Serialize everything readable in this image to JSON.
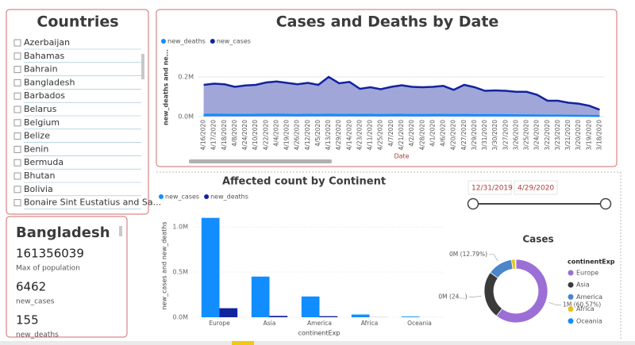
{
  "slicer": {
    "title": "Countries",
    "items": [
      "Azerbaijan",
      "Bahamas",
      "Bahrain",
      "Bangladesh",
      "Barbados",
      "Belarus",
      "Belgium",
      "Belize",
      "Benin",
      "Bermuda",
      "Bhutan",
      "Bolivia",
      "Bonaire Sint Eustatius and Sa..."
    ]
  },
  "card": {
    "title": "Bangladesh",
    "metrics": [
      {
        "value": 161356039,
        "label": "Max of population"
      },
      {
        "value": 6462,
        "label": "new_cases"
      },
      {
        "value": 155,
        "label": "new_deaths"
      }
    ]
  },
  "date_range": {
    "start": "12/31/2019",
    "end": "4/29/2020"
  },
  "chart_data": [
    {
      "type": "line",
      "title": "Cases and Deaths by Date",
      "x_label": "Date",
      "y_label": "new_deaths and ne...",
      "categories": [
        "4/16/2020",
        "4/17/2020",
        "4/18/2020",
        "4/8/2020",
        "4/24/2020",
        "4/10/2020",
        "4/22/2020",
        "4/4/2020",
        "4/19/2020",
        "4/26/2020",
        "4/12/2020",
        "4/5/2020",
        "4/13/2020",
        "4/29/2020",
        "4/14/2020",
        "4/23/2020",
        "4/11/2020",
        "4/25/2020",
        "4/7/2020",
        "4/21/2020",
        "4/2/2020",
        "4/28/2020",
        "4/1/2020",
        "4/6/2020",
        "4/20/2020",
        "4/27/2020",
        "3/29/2020",
        "3/31/2020",
        "3/30/2020",
        "3/27/2020",
        "3/26/2020",
        "3/25/2020",
        "3/24/2020",
        "3/22/2020",
        "3/23/2020",
        "3/21/2020",
        "3/20/2020",
        "3/19/2020",
        "3/18/2020"
      ],
      "series": [
        {
          "name": "new_deaths",
          "color": "#118dff",
          "values": [
            9000,
            9500,
            9000,
            8500,
            8500,
            9000,
            9500,
            9500,
            9000,
            8000,
            9000,
            8500,
            9500,
            8500,
            9000,
            8500,
            9000,
            8000,
            8500,
            9000,
            8000,
            8000,
            8500,
            8500,
            8000,
            8500,
            7500,
            7500,
            7500,
            7000,
            6500,
            6000,
            5500,
            5000,
            5000,
            4500,
            4000,
            3500,
            3000
          ]
        },
        {
          "name": "new_cases",
          "color": "#12239e",
          "values": [
            160000,
            166000,
            163000,
            150000,
            157000,
            160000,
            172000,
            177000,
            170000,
            163000,
            170000,
            160000,
            200000,
            168000,
            175000,
            140000,
            148000,
            138000,
            150000,
            158000,
            150000,
            148000,
            150000,
            155000,
            135000,
            160000,
            148000,
            130000,
            132000,
            130000,
            125000,
            125000,
            110000,
            80000,
            80000,
            70000,
            65000,
            55000,
            35000
          ]
        }
      ],
      "ylim": [
        0,
        240000
      ],
      "yticks": [
        {
          "value": 0,
          "label": "0.0M"
        },
        {
          "value": 200000,
          "label": "0.2M"
        }
      ]
    },
    {
      "type": "bar",
      "title": "Affected count by Continent",
      "x_label": "continentExp",
      "y_label": "new_cases and new_deaths",
      "categories": [
        "Europe",
        "Asia",
        "America",
        "Africa",
        "Oceania"
      ],
      "series": [
        {
          "name": "new_cases",
          "color": "#118dff",
          "values": [
            1100000,
            450000,
            230000,
            30000,
            8000
          ]
        },
        {
          "name": "new_deaths",
          "color": "#12239e",
          "values": [
            100000,
            15000,
            12000,
            1000,
            200
          ]
        }
      ],
      "ylim": [
        0,
        1150000
      ],
      "yticks": [
        {
          "value": 0,
          "label": "0.0M"
        },
        {
          "value": 500000,
          "label": "0.5M"
        },
        {
          "value": 1000000,
          "label": "1.0M"
        }
      ]
    },
    {
      "type": "pie",
      "title": "Cases",
      "legend_title": "continentExp",
      "categories": [
        "Europe",
        "Asia",
        "America",
        "Africa",
        "Oceania"
      ],
      "values": [
        60.57,
        24.4,
        12.79,
        1.9,
        0.34
      ],
      "value_labels": [
        "1M (60.57%)",
        "0M (24...)",
        "0M (12.79%)",
        null,
        null
      ],
      "colors": [
        "#9b6fd6",
        "#3a3a3a",
        "#4a86c8",
        "#e8c21a",
        "#118dff"
      ]
    }
  ]
}
